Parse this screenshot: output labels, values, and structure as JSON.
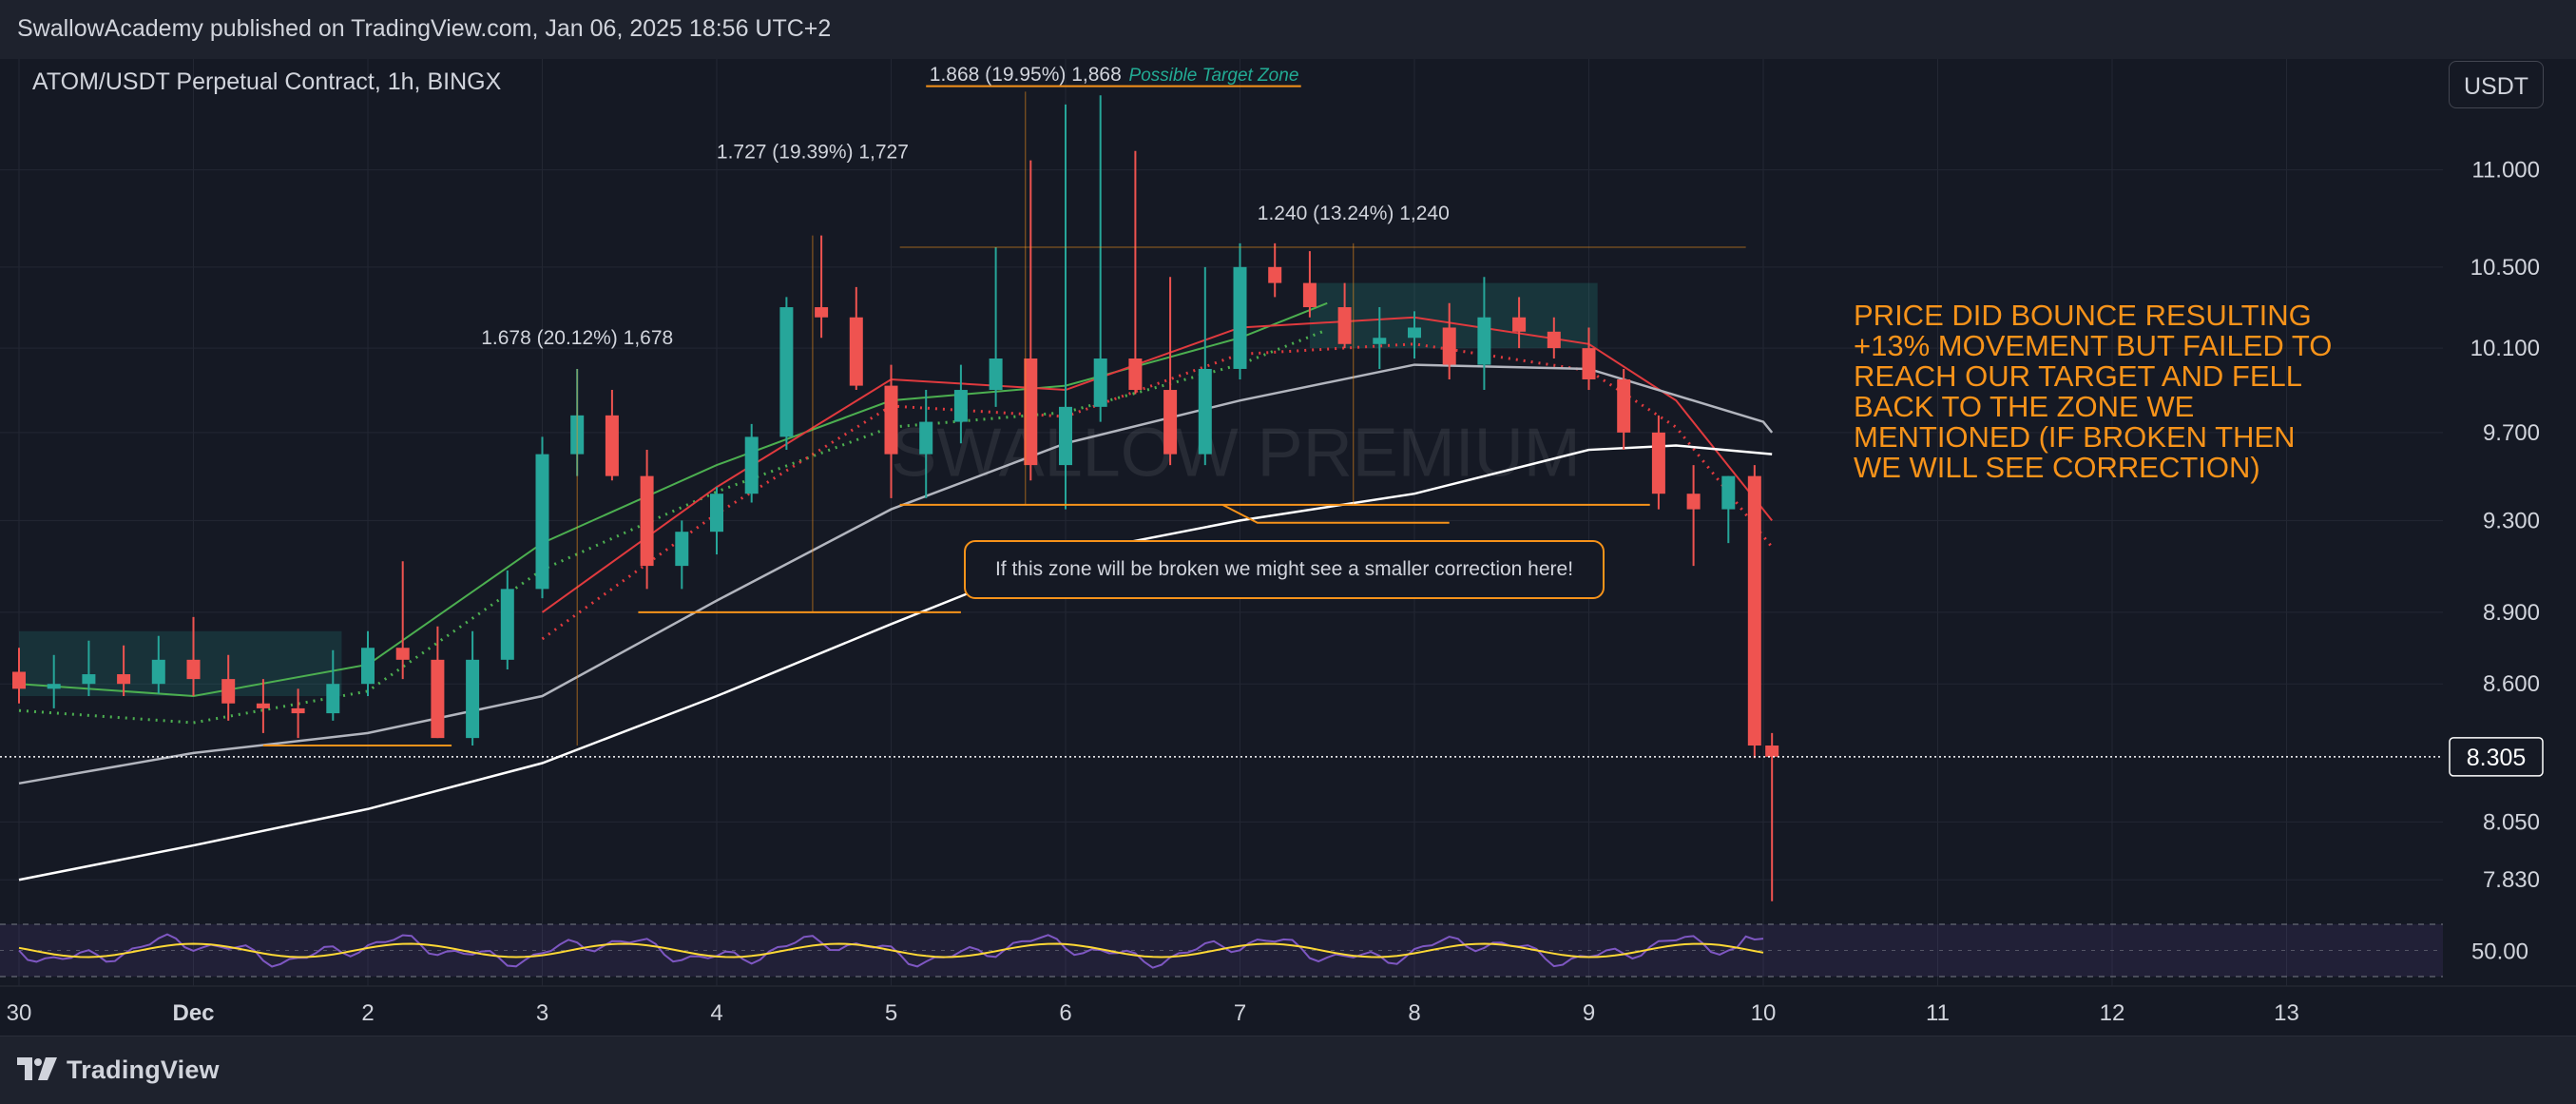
{
  "header": {
    "publish_line": "SwallowAcademy published on TradingView.com, Jan 06, 2025 18:56 UTC+2"
  },
  "chart": {
    "symbol_title": "ATOM/USDT Perpetual Contract, 1h, BINGX",
    "currency_button": "USDT",
    "watermark": "SWALLOW PREMIUM",
    "current_price_label": "8.305",
    "rsi_level_label": "50.00",
    "commentary": "PRICE DID BOUNCE RESULTING +13% MOVEMENT BUT FAILED TO REACH OUR TARGET AND FELL BACK TO THE ZONE WE MENTIONED (IF BROKEN THEN WE WILL SEE CORRECTION)",
    "zone_note": "If this zone will be broken we might see a smaller correction here!",
    "target_zone_label": "Possible Target Zone",
    "measure_labels": [
      {
        "text": "1.678 (20.12%) 1,678",
        "day": 3.2,
        "price": 10.12
      },
      {
        "text": "1.727 (19.39%) 1,727",
        "day": 4.55,
        "price": 11.06
      },
      {
        "text": "1.868 (19.95%) 1,868",
        "day": 5.77,
        "price": 11.48
      },
      {
        "text": "1.240 (13.24%) 1,240",
        "day": 7.65,
        "price": 10.74
      }
    ],
    "colors": {
      "background": "#151924",
      "panel": "#1e222d",
      "grid": "#232733",
      "bullish": "#26a69a",
      "bearish": "#ef5350",
      "annotation": "#f7931a",
      "target_label": "#22ab94",
      "ema_fast": "#4caf50",
      "ema_red": "#e03a3e",
      "ma_white": "#ffffff",
      "ma_gray": "#b2b5be",
      "rsi": "#7e57c2",
      "rsi_ma": "#fdd835"
    }
  },
  "chart_data": {
    "type": "line",
    "title": "ATOM/USDT Perpetual Contract, 1h, BINGX",
    "x_axis": {
      "tick_labels": [
        "30",
        "Dec",
        "2",
        "3",
        "4",
        "5",
        "6",
        "7",
        "8",
        "9",
        "10",
        "11",
        "12",
        "13"
      ],
      "tick_days": [
        0,
        1,
        2,
        3,
        4,
        5,
        6,
        7,
        8,
        9,
        10,
        11,
        12,
        13
      ],
      "range_days": [
        0,
        14
      ]
    },
    "y_axis": {
      "tick_labels": [
        "11.000",
        "10.500",
        "10.100",
        "9.700",
        "9.300",
        "8.900",
        "8.600",
        "8.305",
        "8.050",
        "7.830"
      ],
      "tick_values": [
        11.0,
        10.5,
        10.1,
        9.7,
        9.3,
        8.9,
        8.6,
        8.305,
        8.05,
        7.83
      ],
      "scale": "log",
      "range": [
        7.7,
        11.6
      ]
    },
    "series": [
      {
        "type": "candlestick",
        "x": [
          0,
          0.2,
          0.4,
          0.6,
          0.8,
          1.0,
          1.2,
          1.4,
          1.6,
          1.8,
          2.0,
          2.2,
          2.4,
          2.6,
          2.8,
          3.0,
          3.2,
          3.4,
          3.6,
          3.8,
          4.0,
          4.2,
          4.4,
          4.6,
          4.8,
          5.0,
          5.2,
          5.4,
          5.6,
          5.8,
          6.0,
          6.2,
          6.4,
          6.6,
          6.8,
          7.0,
          7.2,
          7.4,
          7.6,
          7.8,
          8.0,
          8.2,
          8.4,
          8.6,
          8.8,
          9.0,
          9.2,
          9.4,
          9.6,
          9.8,
          9.95,
          10.05
        ],
        "open": [
          8.65,
          8.58,
          8.6,
          8.64,
          8.6,
          8.7,
          8.62,
          8.52,
          8.5,
          8.48,
          8.6,
          8.75,
          8.7,
          8.38,
          8.7,
          9.0,
          9.6,
          9.78,
          9.5,
          9.1,
          9.25,
          9.42,
          9.68,
          10.3,
          10.25,
          9.92,
          9.6,
          9.75,
          9.9,
          10.05,
          9.55,
          9.82,
          10.05,
          9.9,
          9.6,
          10.0,
          10.5,
          10.42,
          10.3,
          10.12,
          10.15,
          10.2,
          10.02,
          10.25,
          10.18,
          10.1,
          9.95,
          9.7,
          9.42,
          9.35,
          9.5,
          8.35
        ],
        "high": [
          8.75,
          8.72,
          8.78,
          8.76,
          8.8,
          8.88,
          8.72,
          8.62,
          8.58,
          8.74,
          8.82,
          9.12,
          8.84,
          8.82,
          9.08,
          9.68,
          10.0,
          9.9,
          9.62,
          9.3,
          9.45,
          9.74,
          10.35,
          10.66,
          10.4,
          10.02,
          9.9,
          10.02,
          10.6,
          11.05,
          11.35,
          11.4,
          11.1,
          10.45,
          10.5,
          10.62,
          10.62,
          10.58,
          10.42,
          10.3,
          10.28,
          10.32,
          10.45,
          10.35,
          10.25,
          10.2,
          10.0,
          9.78,
          9.55,
          9.5,
          9.55,
          8.4
        ],
        "low": [
          8.52,
          8.5,
          8.55,
          8.55,
          8.56,
          8.55,
          8.45,
          8.4,
          8.38,
          8.45,
          8.55,
          8.62,
          8.38,
          8.35,
          8.66,
          8.96,
          9.5,
          9.48,
          9.0,
          9.0,
          9.15,
          9.38,
          9.62,
          10.15,
          9.9,
          9.4,
          9.4,
          9.65,
          9.82,
          9.48,
          9.35,
          9.75,
          9.88,
          9.55,
          9.55,
          9.95,
          10.35,
          10.25,
          10.1,
          10.0,
          10.05,
          9.95,
          9.9,
          10.1,
          10.05,
          9.9,
          9.62,
          9.35,
          9.1,
          9.2,
          8.3,
          7.75
        ],
        "close": [
          8.58,
          8.6,
          8.64,
          8.6,
          8.7,
          8.62,
          8.52,
          8.5,
          8.48,
          8.6,
          8.75,
          8.7,
          8.38,
          8.7,
          9.0,
          9.6,
          9.78,
          9.5,
          9.1,
          9.25,
          9.42,
          9.68,
          10.3,
          10.25,
          9.92,
          9.6,
          9.75,
          9.9,
          10.05,
          9.55,
          9.82,
          10.05,
          9.9,
          9.6,
          10.0,
          10.5,
          10.42,
          10.3,
          10.12,
          10.15,
          10.2,
          10.02,
          10.25,
          10.18,
          10.1,
          9.95,
          9.7,
          9.42,
          9.35,
          9.5,
          8.35,
          8.305
        ]
      },
      {
        "type": "line",
        "color": "#4caf50",
        "x": [
          0,
          1,
          2,
          3,
          4,
          5,
          6,
          7,
          7.5
        ],
        "y": [
          8.6,
          8.55,
          8.68,
          9.2,
          9.55,
          9.85,
          9.92,
          10.15,
          10.32
        ]
      },
      {
        "type": "line",
        "color": "#e03a3e",
        "x": [
          3,
          4,
          5,
          6,
          7,
          8,
          9,
          9.5,
          10.05
        ],
        "y": [
          8.9,
          9.45,
          9.95,
          9.9,
          10.2,
          10.25,
          10.12,
          9.85,
          9.3
        ]
      },
      {
        "type": "line",
        "color": "#b2b5be",
        "x": [
          0,
          1,
          2,
          3,
          4,
          5,
          6,
          7,
          8,
          9,
          10,
          10.05
        ],
        "y": [
          8.2,
          8.32,
          8.4,
          8.55,
          8.95,
          9.35,
          9.65,
          9.85,
          10.02,
          10.0,
          9.75,
          9.7
        ]
      },
      {
        "type": "line",
        "color": "#ffffff",
        "x": [
          0,
          1,
          2,
          3,
          4,
          5,
          6,
          7,
          8,
          9,
          9.5,
          10.05
        ],
        "y": [
          7.83,
          7.96,
          8.1,
          8.28,
          8.55,
          8.85,
          9.15,
          9.3,
          9.42,
          9.62,
          9.64,
          9.6
        ]
      }
    ],
    "levels": [
      {
        "price": 8.305,
        "style": "dotted",
        "label": "8.305"
      }
    ]
  }
}
